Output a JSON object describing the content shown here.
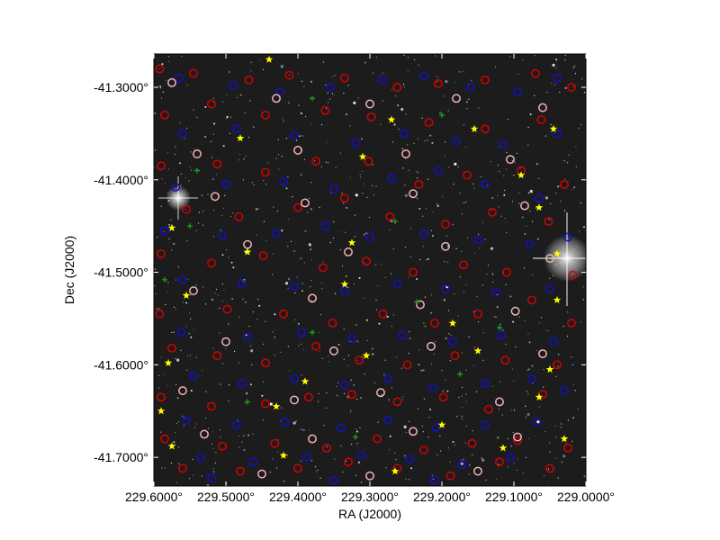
{
  "chart_data": {
    "type": "scatter",
    "title": "",
    "xlabel": "RA (J2000)",
    "ylabel": "Dec (J2000)",
    "xlim": [
      229.6,
      229.0
    ],
    "ylim": [
      -41.731,
      -41.264
    ],
    "x_ticks": [
      {
        "value": 229.6,
        "label": "229.6000°"
      },
      {
        "value": 229.5,
        "label": "229.5000°"
      },
      {
        "value": 229.4,
        "label": "229.4000°"
      },
      {
        "value": 229.3,
        "label": "229.3000°"
      },
      {
        "value": 229.2,
        "label": "229.2000°"
      },
      {
        "value": 229.1,
        "label": "229.1000°"
      },
      {
        "value": 229.0,
        "label": "229.0000°"
      }
    ],
    "y_ticks": [
      {
        "value": -41.3,
        "label": "-41.3000°"
      },
      {
        "value": -41.4,
        "label": "-41.4000°"
      },
      {
        "value": -41.5,
        "label": "-41.5000°"
      },
      {
        "value": -41.6,
        "label": "-41.6000°"
      },
      {
        "value": -41.7,
        "label": "-41.7000°"
      }
    ],
    "background": "grayscale star field image",
    "grid": false,
    "series": [
      {
        "marker": "open circle",
        "color": "#d40000",
        "points": [
          [
            229.592,
            -41.28
          ],
          [
            229.545,
            -41.285
          ],
          [
            229.468,
            -41.292
          ],
          [
            229.412,
            -41.287
          ],
          [
            229.335,
            -41.29
          ],
          [
            229.262,
            -41.3
          ],
          [
            229.205,
            -41.296
          ],
          [
            229.14,
            -41.292
          ],
          [
            229.07,
            -41.285
          ],
          [
            229.02,
            -41.3
          ],
          [
            229.585,
            -41.33
          ],
          [
            229.52,
            -41.318
          ],
          [
            229.445,
            -41.33
          ],
          [
            229.362,
            -41.325
          ],
          [
            229.298,
            -41.332
          ],
          [
            229.218,
            -41.338
          ],
          [
            229.14,
            -41.345
          ],
          [
            229.062,
            -41.335
          ],
          [
            229.59,
            -41.385
          ],
          [
            229.512,
            -41.383
          ],
          [
            229.445,
            -41.392
          ],
          [
            229.375,
            -41.38
          ],
          [
            229.302,
            -41.38
          ],
          [
            229.232,
            -41.405
          ],
          [
            229.165,
            -41.395
          ],
          [
            229.09,
            -41.39
          ],
          [
            229.03,
            -41.405
          ],
          [
            229.555,
            -41.432
          ],
          [
            229.482,
            -41.44
          ],
          [
            229.4,
            -41.43
          ],
          [
            229.335,
            -41.42
          ],
          [
            229.272,
            -41.44
          ],
          [
            229.195,
            -41.448
          ],
          [
            229.13,
            -41.435
          ],
          [
            229.052,
            -41.445
          ],
          [
            229.59,
            -41.48
          ],
          [
            229.52,
            -41.49
          ],
          [
            229.448,
            -41.482
          ],
          [
            229.365,
            -41.495
          ],
          [
            229.305,
            -41.488
          ],
          [
            229.24,
            -41.5
          ],
          [
            229.17,
            -41.492
          ],
          [
            229.11,
            -41.5
          ],
          [
            229.018,
            -41.503
          ],
          [
            229.592,
            -41.545
          ],
          [
            229.498,
            -41.54
          ],
          [
            229.42,
            -41.545
          ],
          [
            229.352,
            -41.555
          ],
          [
            229.282,
            -41.545
          ],
          [
            229.21,
            -41.555
          ],
          [
            229.15,
            -41.545
          ],
          [
            229.075,
            -41.53
          ],
          [
            229.02,
            -41.555
          ],
          [
            229.575,
            -41.582
          ],
          [
            229.512,
            -41.59
          ],
          [
            229.445,
            -41.598
          ],
          [
            229.375,
            -41.58
          ],
          [
            229.315,
            -41.595
          ],
          [
            229.248,
            -41.6
          ],
          [
            229.182,
            -41.59
          ],
          [
            229.112,
            -41.595
          ],
          [
            229.04,
            -41.6
          ],
          [
            229.59,
            -41.635
          ],
          [
            229.52,
            -41.645
          ],
          [
            229.445,
            -41.642
          ],
          [
            229.385,
            -41.635
          ],
          [
            229.325,
            -41.632
          ],
          [
            229.262,
            -41.64
          ],
          [
            229.198,
            -41.635
          ],
          [
            229.135,
            -41.648
          ],
          [
            229.06,
            -41.632
          ],
          [
            229.585,
            -41.68
          ],
          [
            229.505,
            -41.688
          ],
          [
            229.432,
            -41.685
          ],
          [
            229.36,
            -41.69
          ],
          [
            229.29,
            -41.68
          ],
          [
            229.225,
            -41.692
          ],
          [
            229.158,
            -41.685
          ],
          [
            229.095,
            -41.682
          ],
          [
            229.025,
            -41.69
          ],
          [
            229.56,
            -41.712
          ],
          [
            229.48,
            -41.715
          ],
          [
            229.4,
            -41.712
          ],
          [
            229.33,
            -41.705
          ],
          [
            229.262,
            -41.712
          ],
          [
            229.188,
            -41.72
          ],
          [
            229.12,
            -41.705
          ],
          [
            229.05,
            -41.712
          ]
        ]
      },
      {
        "marker": "open circle",
        "color": "#1010cc",
        "points": [
          [
            229.565,
            -41.29
          ],
          [
            229.49,
            -41.298
          ],
          [
            229.425,
            -41.305
          ],
          [
            229.355,
            -41.3
          ],
          [
            229.282,
            -41.292
          ],
          [
            229.225,
            -41.288
          ],
          [
            229.16,
            -41.3
          ],
          [
            229.095,
            -41.305
          ],
          [
            229.04,
            -41.29
          ],
          [
            229.56,
            -41.35
          ],
          [
            229.485,
            -41.345
          ],
          [
            229.405,
            -41.352
          ],
          [
            229.32,
            -41.36
          ],
          [
            229.252,
            -41.35
          ],
          [
            229.18,
            -41.358
          ],
          [
            229.115,
            -41.362
          ],
          [
            229.04,
            -41.35
          ],
          [
            229.57,
            -41.408
          ],
          [
            229.5,
            -41.405
          ],
          [
            229.42,
            -41.402
          ],
          [
            229.35,
            -41.41
          ],
          [
            229.27,
            -41.398
          ],
          [
            229.205,
            -41.39
          ],
          [
            229.14,
            -41.405
          ],
          [
            229.065,
            -41.42
          ],
          [
            229.585,
            -41.455
          ],
          [
            229.505,
            -41.46
          ],
          [
            229.43,
            -41.458
          ],
          [
            229.362,
            -41.45
          ],
          [
            229.3,
            -41.462
          ],
          [
            229.225,
            -41.458
          ],
          [
            229.15,
            -41.465
          ],
          [
            229.078,
            -41.47
          ],
          [
            229.025,
            -41.462
          ],
          [
            229.56,
            -41.508
          ],
          [
            229.478,
            -41.512
          ],
          [
            229.405,
            -41.515
          ],
          [
            229.335,
            -41.52
          ],
          [
            229.262,
            -41.512
          ],
          [
            229.195,
            -41.518
          ],
          [
            229.125,
            -41.522
          ],
          [
            229.05,
            -41.518
          ],
          [
            229.562,
            -41.565
          ],
          [
            229.47,
            -41.57
          ],
          [
            229.395,
            -41.565
          ],
          [
            229.325,
            -41.572
          ],
          [
            229.255,
            -41.568
          ],
          [
            229.185,
            -41.575
          ],
          [
            229.118,
            -41.568
          ],
          [
            229.045,
            -41.575
          ],
          [
            229.545,
            -41.612
          ],
          [
            229.478,
            -41.62
          ],
          [
            229.405,
            -41.615
          ],
          [
            229.335,
            -41.622
          ],
          [
            229.275,
            -41.615
          ],
          [
            229.212,
            -41.625
          ],
          [
            229.14,
            -41.62
          ],
          [
            229.075,
            -41.615
          ],
          [
            229.03,
            -41.628
          ],
          [
            229.555,
            -41.66
          ],
          [
            229.485,
            -41.665
          ],
          [
            229.418,
            -41.662
          ],
          [
            229.34,
            -41.668
          ],
          [
            229.275,
            -41.66
          ],
          [
            229.208,
            -41.668
          ],
          [
            229.14,
            -41.665
          ],
          [
            229.068,
            -41.662
          ],
          [
            229.535,
            -41.7
          ],
          [
            229.462,
            -41.705
          ],
          [
            229.388,
            -41.7
          ],
          [
            229.312,
            -41.698
          ],
          [
            229.245,
            -41.702
          ],
          [
            229.172,
            -41.708
          ],
          [
            229.105,
            -41.7
          ],
          [
            229.52,
            -41.722
          ],
          [
            229.35,
            -41.725
          ],
          [
            229.21,
            -41.725
          ]
        ]
      },
      {
        "marker": "open circle",
        "color": "#f0b4b4",
        "points": [
          [
            229.575,
            -41.295
          ],
          [
            229.43,
            -41.312
          ],
          [
            229.3,
            -41.318
          ],
          [
            229.18,
            -41.312
          ],
          [
            229.06,
            -41.322
          ],
          [
            229.54,
            -41.372
          ],
          [
            229.4,
            -41.368
          ],
          [
            229.25,
            -41.372
          ],
          [
            229.105,
            -41.378
          ],
          [
            229.515,
            -41.418
          ],
          [
            229.39,
            -41.425
          ],
          [
            229.24,
            -41.415
          ],
          [
            229.085,
            -41.428
          ],
          [
            229.47,
            -41.47
          ],
          [
            229.33,
            -41.478
          ],
          [
            229.195,
            -41.472
          ],
          [
            229.05,
            -41.485
          ],
          [
            229.545,
            -41.52
          ],
          [
            229.38,
            -41.528
          ],
          [
            229.23,
            -41.535
          ],
          [
            229.098,
            -41.542
          ],
          [
            229.5,
            -41.575
          ],
          [
            229.35,
            -41.585
          ],
          [
            229.215,
            -41.58
          ],
          [
            229.06,
            -41.588
          ],
          [
            229.56,
            -41.628
          ],
          [
            229.405,
            -41.638
          ],
          [
            229.285,
            -41.63
          ],
          [
            229.12,
            -41.64
          ],
          [
            229.53,
            -41.675
          ],
          [
            229.38,
            -41.68
          ],
          [
            229.24,
            -41.672
          ],
          [
            229.095,
            -41.678
          ],
          [
            229.45,
            -41.718
          ],
          [
            229.3,
            -41.72
          ],
          [
            229.15,
            -41.715
          ]
        ]
      },
      {
        "marker": "star",
        "color": "#ffff00",
        "points": [
          [
            229.44,
            -41.27
          ],
          [
            229.48,
            -41.355
          ],
          [
            229.27,
            -41.335
          ],
          [
            229.045,
            -41.345
          ],
          [
            229.155,
            -41.345
          ],
          [
            229.31,
            -41.375
          ],
          [
            229.09,
            -41.395
          ],
          [
            229.575,
            -41.452
          ],
          [
            229.325,
            -41.468
          ],
          [
            229.065,
            -41.43
          ],
          [
            229.47,
            -41.478
          ],
          [
            229.555,
            -41.525
          ],
          [
            229.335,
            -41.513
          ],
          [
            229.04,
            -41.48
          ],
          [
            229.185,
            -41.555
          ],
          [
            229.305,
            -41.59
          ],
          [
            229.15,
            -41.585
          ],
          [
            229.04,
            -41.53
          ],
          [
            229.58,
            -41.598
          ],
          [
            229.39,
            -41.618
          ],
          [
            229.065,
            -41.635
          ],
          [
            229.43,
            -41.645
          ],
          [
            229.2,
            -41.665
          ],
          [
            229.05,
            -41.605
          ],
          [
            229.59,
            -41.65
          ],
          [
            229.575,
            -41.688
          ],
          [
            229.42,
            -41.698
          ],
          [
            229.265,
            -41.715
          ],
          [
            229.115,
            -41.69
          ],
          [
            229.03,
            -41.68
          ]
        ]
      },
      {
        "marker": "plus",
        "color": "#1aa01a",
        "points": [
          [
            229.38,
            -41.312
          ],
          [
            229.2,
            -41.33
          ],
          [
            229.54,
            -41.39
          ],
          [
            229.265,
            -41.445
          ],
          [
            229.585,
            -41.508
          ],
          [
            229.235,
            -41.532
          ],
          [
            229.38,
            -41.565
          ],
          [
            229.175,
            -41.61
          ],
          [
            229.47,
            -41.64
          ],
          [
            229.32,
            -41.678
          ],
          [
            229.12,
            -41.56
          ],
          [
            229.55,
            -41.45
          ]
        ]
      }
    ]
  },
  "colors": {
    "red": "#d40000",
    "blue": "#1010cc",
    "pink": "#f0b4b4",
    "yellow": "#ffff00",
    "green": "#1aa01a"
  }
}
